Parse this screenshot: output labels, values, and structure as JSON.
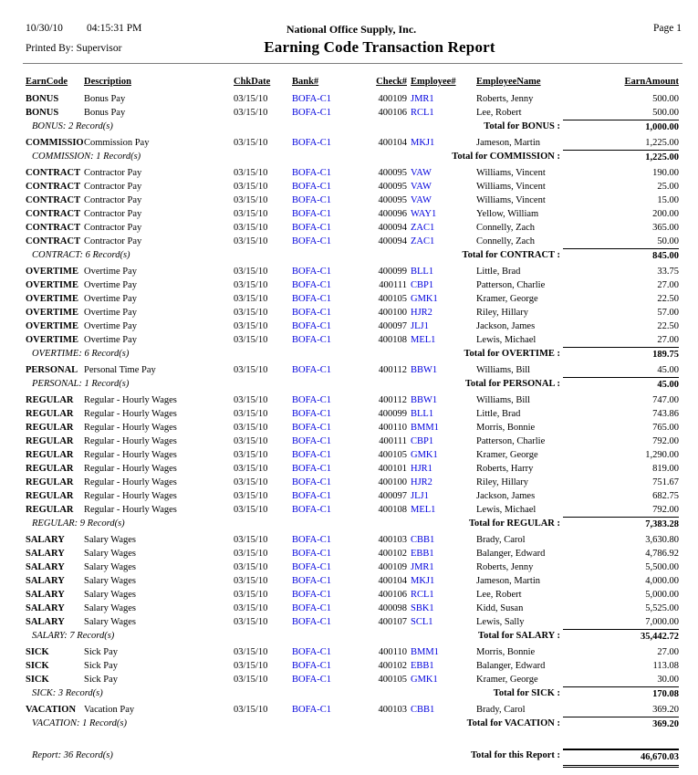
{
  "header": {
    "date": "10/30/10",
    "time": "04:15:31 PM",
    "company": "National Office Supply, Inc.",
    "page": "Page 1",
    "printed_by": "Printed By: Supervisor",
    "title": "Earning Code Transaction Report"
  },
  "columns": {
    "earncode": "EarnCode",
    "description": "Description",
    "chkdate": "ChkDate",
    "bank": "Bank#",
    "check": "Check#",
    "employee": "Employee#",
    "employee_name": "EmployeeName",
    "earn_amount": "EarnAmount"
  },
  "colors": {
    "link_blue": "#0000dd",
    "rule_gray": "#7d7d7d"
  },
  "groups": [
    {
      "rows": [
        {
          "code": "BONUS",
          "desc": "Bonus Pay",
          "date": "03/15/10",
          "bank": "BOFA-C1",
          "check": "400109",
          "emp": "JMR1",
          "name": "Roberts, Jenny",
          "amount": "500.00"
        },
        {
          "code": "BONUS",
          "desc": "Bonus Pay",
          "date": "03/15/10",
          "bank": "BOFA-C1",
          "check": "400106",
          "emp": "RCL1",
          "name": "Lee, Robert",
          "amount": "500.00"
        }
      ],
      "count_label": "BONUS: 2 Record(s)",
      "total_label": "Total for BONUS :",
      "total": "1,000.00"
    },
    {
      "rows": [
        {
          "code": "COMMISSION",
          "desc": "Commission Pay",
          "date": "03/15/10",
          "bank": "BOFA-C1",
          "check": "400104",
          "emp": "MKJ1",
          "name": "Jameson, Martin",
          "amount": "1,225.00"
        }
      ],
      "count_label": "COMMISSION: 1 Record(s)",
      "total_label": "Total for COMMISSION :",
      "total": "1,225.00"
    },
    {
      "rows": [
        {
          "code": "CONTRACT",
          "desc": "Contractor Pay",
          "date": "03/15/10",
          "bank": "BOFA-C1",
          "check": "400095",
          "emp": "VAW",
          "name": "Williams, Vincent",
          "amount": "190.00"
        },
        {
          "code": "CONTRACT",
          "desc": "Contractor Pay",
          "date": "03/15/10",
          "bank": "BOFA-C1",
          "check": "400095",
          "emp": "VAW",
          "name": "Williams, Vincent",
          "amount": "25.00"
        },
        {
          "code": "CONTRACT",
          "desc": "Contractor Pay",
          "date": "03/15/10",
          "bank": "BOFA-C1",
          "check": "400095",
          "emp": "VAW",
          "name": "Williams, Vincent",
          "amount": "15.00"
        },
        {
          "code": "CONTRACT",
          "desc": "Contractor Pay",
          "date": "03/15/10",
          "bank": "BOFA-C1",
          "check": "400096",
          "emp": "WAY1",
          "name": "Yellow, William",
          "amount": "200.00"
        },
        {
          "code": "CONTRACT",
          "desc": "Contractor Pay",
          "date": "03/15/10",
          "bank": "BOFA-C1",
          "check": "400094",
          "emp": "ZAC1",
          "name": "Connelly, Zach",
          "amount": "365.00"
        },
        {
          "code": "CONTRACT",
          "desc": "Contractor Pay",
          "date": "03/15/10",
          "bank": "BOFA-C1",
          "check": "400094",
          "emp": "ZAC1",
          "name": "Connelly, Zach",
          "amount": "50.00"
        }
      ],
      "count_label": "CONTRACT: 6 Record(s)",
      "total_label": "Total for CONTRACT :",
      "total": "845.00"
    },
    {
      "rows": [
        {
          "code": "OVERTIME",
          "desc": "Overtime Pay",
          "date": "03/15/10",
          "bank": "BOFA-C1",
          "check": "400099",
          "emp": "BLL1",
          "name": "Little, Brad",
          "amount": "33.75"
        },
        {
          "code": "OVERTIME",
          "desc": "Overtime Pay",
          "date": "03/15/10",
          "bank": "BOFA-C1",
          "check": "400111",
          "emp": "CBP1",
          "name": "Patterson, Charlie",
          "amount": "27.00"
        },
        {
          "code": "OVERTIME",
          "desc": "Overtime Pay",
          "date": "03/15/10",
          "bank": "BOFA-C1",
          "check": "400105",
          "emp": "GMK1",
          "name": "Kramer, George",
          "amount": "22.50"
        },
        {
          "code": "OVERTIME",
          "desc": "Overtime Pay",
          "date": "03/15/10",
          "bank": "BOFA-C1",
          "check": "400100",
          "emp": "HJR2",
          "name": "Riley, Hillary",
          "amount": "57.00"
        },
        {
          "code": "OVERTIME",
          "desc": "Overtime Pay",
          "date": "03/15/10",
          "bank": "BOFA-C1",
          "check": "400097",
          "emp": "JLJ1",
          "name": "Jackson, James",
          "amount": "22.50"
        },
        {
          "code": "OVERTIME",
          "desc": "Overtime Pay",
          "date": "03/15/10",
          "bank": "BOFA-C1",
          "check": "400108",
          "emp": "MEL1",
          "name": "Lewis, Michael",
          "amount": "27.00"
        }
      ],
      "count_label": "OVERTIME: 6 Record(s)",
      "total_label": "Total for OVERTIME :",
      "total": "189.75"
    },
    {
      "rows": [
        {
          "code": "PERSONAL",
          "desc": "Personal Time Pay",
          "date": "03/15/10",
          "bank": "BOFA-C1",
          "check": "400112",
          "emp": "BBW1",
          "name": "Williams, Bill",
          "amount": "45.00"
        }
      ],
      "count_label": "PERSONAL: 1 Record(s)",
      "total_label": "Total for PERSONAL :",
      "total": "45.00"
    },
    {
      "rows": [
        {
          "code": "REGULAR",
          "desc": "Regular - Hourly Wages",
          "date": "03/15/10",
          "bank": "BOFA-C1",
          "check": "400112",
          "emp": "BBW1",
          "name": "Williams, Bill",
          "amount": "747.00"
        },
        {
          "code": "REGULAR",
          "desc": "Regular - Hourly Wages",
          "date": "03/15/10",
          "bank": "BOFA-C1",
          "check": "400099",
          "emp": "BLL1",
          "name": "Little, Brad",
          "amount": "743.86"
        },
        {
          "code": "REGULAR",
          "desc": "Regular - Hourly Wages",
          "date": "03/15/10",
          "bank": "BOFA-C1",
          "check": "400110",
          "emp": "BMM1",
          "name": "Morris, Bonnie",
          "amount": "765.00"
        },
        {
          "code": "REGULAR",
          "desc": "Regular - Hourly Wages",
          "date": "03/15/10",
          "bank": "BOFA-C1",
          "check": "400111",
          "emp": "CBP1",
          "name": "Patterson, Charlie",
          "amount": "792.00"
        },
        {
          "code": "REGULAR",
          "desc": "Regular - Hourly Wages",
          "date": "03/15/10",
          "bank": "BOFA-C1",
          "check": "400105",
          "emp": "GMK1",
          "name": "Kramer, George",
          "amount": "1,290.00"
        },
        {
          "code": "REGULAR",
          "desc": "Regular - Hourly Wages",
          "date": "03/15/10",
          "bank": "BOFA-C1",
          "check": "400101",
          "emp": "HJR1",
          "name": "Roberts, Harry",
          "amount": "819.00"
        },
        {
          "code": "REGULAR",
          "desc": "Regular - Hourly Wages",
          "date": "03/15/10",
          "bank": "BOFA-C1",
          "check": "400100",
          "emp": "HJR2",
          "name": "Riley, Hillary",
          "amount": "751.67"
        },
        {
          "code": "REGULAR",
          "desc": "Regular - Hourly Wages",
          "date": "03/15/10",
          "bank": "BOFA-C1",
          "check": "400097",
          "emp": "JLJ1",
          "name": "Jackson, James",
          "amount": "682.75"
        },
        {
          "code": "REGULAR",
          "desc": "Regular - Hourly Wages",
          "date": "03/15/10",
          "bank": "BOFA-C1",
          "check": "400108",
          "emp": "MEL1",
          "name": "Lewis, Michael",
          "amount": "792.00"
        }
      ],
      "count_label": "REGULAR: 9 Record(s)",
      "total_label": "Total for REGULAR :",
      "total": "7,383.28"
    },
    {
      "rows": [
        {
          "code": "SALARY",
          "desc": "Salary Wages",
          "date": "03/15/10",
          "bank": "BOFA-C1",
          "check": "400103",
          "emp": "CBB1",
          "name": "Brady, Carol",
          "amount": "3,630.80"
        },
        {
          "code": "SALARY",
          "desc": "Salary Wages",
          "date": "03/15/10",
          "bank": "BOFA-C1",
          "check": "400102",
          "emp": "EBB1",
          "name": "Balanger, Edward",
          "amount": "4,786.92"
        },
        {
          "code": "SALARY",
          "desc": "Salary Wages",
          "date": "03/15/10",
          "bank": "BOFA-C1",
          "check": "400109",
          "emp": "JMR1",
          "name": "Roberts, Jenny",
          "amount": "5,500.00"
        },
        {
          "code": "SALARY",
          "desc": "Salary Wages",
          "date": "03/15/10",
          "bank": "BOFA-C1",
          "check": "400104",
          "emp": "MKJ1",
          "name": "Jameson, Martin",
          "amount": "4,000.00"
        },
        {
          "code": "SALARY",
          "desc": "Salary Wages",
          "date": "03/15/10",
          "bank": "BOFA-C1",
          "check": "400106",
          "emp": "RCL1",
          "name": "Lee, Robert",
          "amount": "5,000.00"
        },
        {
          "code": "SALARY",
          "desc": "Salary Wages",
          "date": "03/15/10",
          "bank": "BOFA-C1",
          "check": "400098",
          "emp": "SBK1",
          "name": "Kidd, Susan",
          "amount": "5,525.00"
        },
        {
          "code": "SALARY",
          "desc": "Salary Wages",
          "date": "03/15/10",
          "bank": "BOFA-C1",
          "check": "400107",
          "emp": "SCL1",
          "name": "Lewis, Sally",
          "amount": "7,000.00"
        }
      ],
      "count_label": "SALARY: 7 Record(s)",
      "total_label": "Total for SALARY :",
      "total": "35,442.72"
    },
    {
      "rows": [
        {
          "code": "SICK",
          "desc": "Sick Pay",
          "date": "03/15/10",
          "bank": "BOFA-C1",
          "check": "400110",
          "emp": "BMM1",
          "name": "Morris, Bonnie",
          "amount": "27.00"
        },
        {
          "code": "SICK",
          "desc": "Sick Pay",
          "date": "03/15/10",
          "bank": "BOFA-C1",
          "check": "400102",
          "emp": "EBB1",
          "name": "Balanger, Edward",
          "amount": "113.08"
        },
        {
          "code": "SICK",
          "desc": "Sick Pay",
          "date": "03/15/10",
          "bank": "BOFA-C1",
          "check": "400105",
          "emp": "GMK1",
          "name": "Kramer, George",
          "amount": "30.00"
        }
      ],
      "count_label": "SICK: 3 Record(s)",
      "total_label": "Total for SICK :",
      "total": "170.08"
    },
    {
      "rows": [
        {
          "code": "VACATION",
          "desc": "Vacation Pay",
          "date": "03/15/10",
          "bank": "BOFA-C1",
          "check": "400103",
          "emp": "CBB1",
          "name": "Brady, Carol",
          "amount": "369.20"
        }
      ],
      "count_label": "VACATION: 1 Record(s)",
      "total_label": "Total for VACATION :",
      "total": "369.20"
    }
  ],
  "report_footer": {
    "count_label": "Report: 36 Record(s)",
    "total_label": "Total for this Report :",
    "total": "46,670.03"
  }
}
